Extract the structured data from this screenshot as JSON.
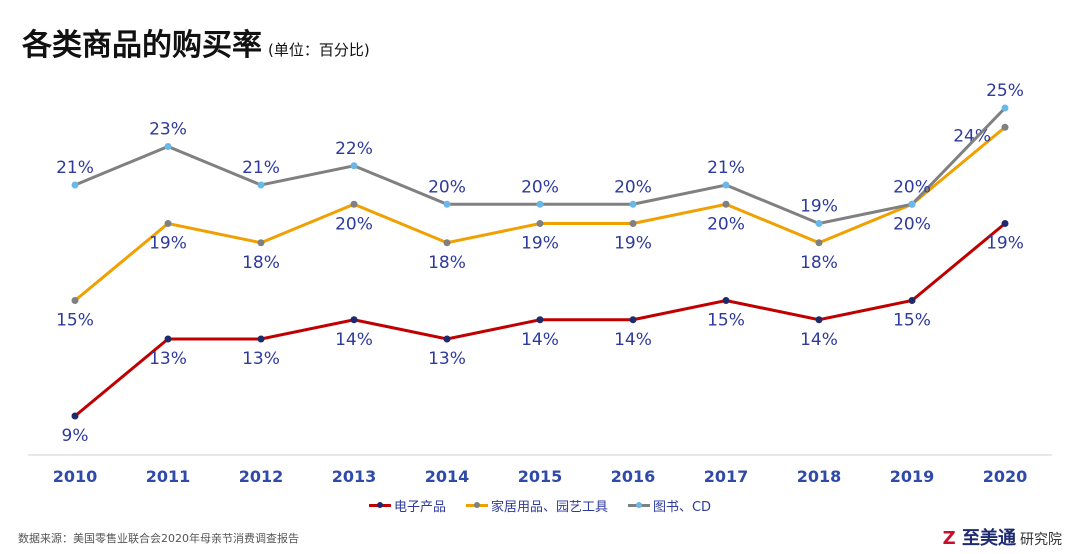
{
  "title": "各类商品的购买率",
  "unit": "(单位：百分比)",
  "source": "数据来源：美国零售业联合会2020年母亲节消费调查报告",
  "logo": {
    "mark": "Z",
    "name": "至美通",
    "suffix": "研究院"
  },
  "chart_data": {
    "type": "line",
    "title": "各类商品的购买率",
    "xlabel": "",
    "ylabel": "百分比",
    "categories": [
      "2010",
      "2011",
      "2012",
      "2013",
      "2014",
      "2015",
      "2016",
      "2017",
      "2018",
      "2019",
      "2020"
    ],
    "series": [
      {
        "name": "电子产品",
        "color": "#c00000",
        "marker": "#1f2a6b",
        "values": [
          9,
          13,
          13,
          14,
          13,
          14,
          14,
          15,
          14,
          15,
          19
        ],
        "label_pos": "below"
      },
      {
        "name": "家居用品、园艺工具",
        "color": "#f0a000",
        "marker": "#808080",
        "values": [
          15,
          19,
          18,
          20,
          18,
          19,
          19,
          20,
          18,
          20,
          24
        ],
        "label_pos": "below"
      },
      {
        "name": "图书、CD",
        "color": "#808080",
        "marker": "#6ab8e8",
        "values": [
          21,
          23,
          21,
          22,
          20,
          20,
          20,
          21,
          19,
          20,
          25
        ],
        "label_pos": "above"
      }
    ],
    "legend": "bottom",
    "grid": false,
    "label_color": "#2e3a9c"
  }
}
